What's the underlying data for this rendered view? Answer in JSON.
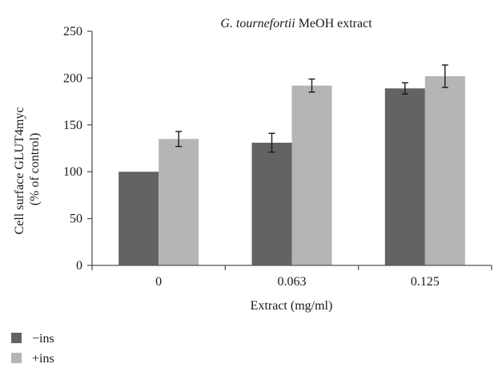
{
  "chart_data": {
    "type": "bar",
    "title": {
      "italic": "G. tournefortii",
      "rest": " MeOH extract"
    },
    "xlabel": "Extract (mg/ml)",
    "ylabel": [
      "Cell surface GLUT4myc",
      "(% of control)"
    ],
    "categories": [
      "0",
      "0.063",
      "0.125"
    ],
    "ylim": [
      0,
      250
    ],
    "yticks": [
      0,
      50,
      100,
      150,
      200,
      250
    ],
    "series": [
      {
        "name": "−ins",
        "color": "#636363",
        "values": [
          100,
          131,
          189
        ],
        "errors": [
          null,
          10,
          6
        ]
      },
      {
        "name": "+ins",
        "color": "#b5b5b5",
        "values": [
          135,
          192,
          202
        ],
        "errors": [
          8,
          7,
          12
        ]
      }
    ],
    "grid": false,
    "legend_position": "bottom-left"
  }
}
